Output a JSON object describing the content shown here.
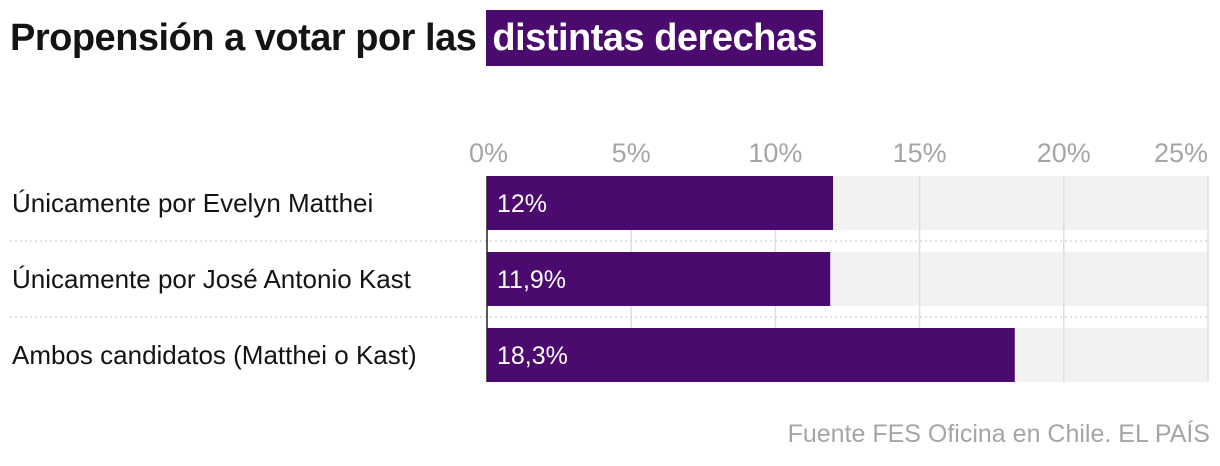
{
  "chart_data": {
    "type": "bar",
    "orientation": "horizontal",
    "title": {
      "prefix": "Propensión a votar por las ",
      "highlight": "distintas derechas"
    },
    "categories": [
      "Únicamente por Evelyn Matthei",
      "Únicamente por José Antonio Kast",
      "Ambos candidatos (Matthei o Kast)"
    ],
    "values": [
      12,
      11.9,
      18.3
    ],
    "value_labels": [
      "12%",
      "11,9%",
      "18,3%"
    ],
    "x_ticks": [
      0,
      5,
      10,
      15,
      20,
      25
    ],
    "x_tick_labels": [
      "0%",
      "5%",
      "10%",
      "15%",
      "20%",
      "25%"
    ],
    "xlim": [
      0,
      25
    ],
    "xlabel": "",
    "ylabel": "",
    "grid": true,
    "legend": "none"
  },
  "source": "Fuente FES Oficina en Chile. EL PAÍS",
  "colors": {
    "bar": "#4a0a6e",
    "track": "#f2f2f2",
    "grid": "#dedede",
    "tick_text": "#a5a5a5",
    "label_text": "#141414",
    "bar_text": "#ffffff"
  }
}
